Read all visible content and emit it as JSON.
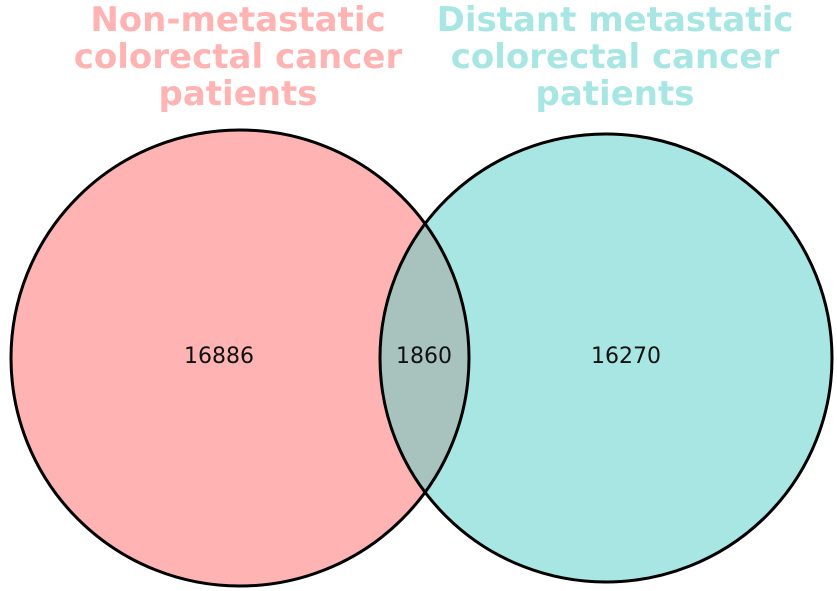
{
  "sets": [
    {
      "label": "Non-metastatic colorectal cancer patients",
      "lines": [
        "Non-metastatic",
        "colorectal cancer",
        "patients"
      ],
      "unique_count": "16886",
      "color": "#FFB3B3"
    },
    {
      "label": "Distant metastatic colorectal cancer patients",
      "lines": [
        "Distant metastatic",
        "colorectal cancer",
        "patients"
      ],
      "unique_count": "16270",
      "color": "#A8E6E3"
    }
  ],
  "intersection": {
    "count": "1860",
    "color": "#A8C3BD"
  }
}
